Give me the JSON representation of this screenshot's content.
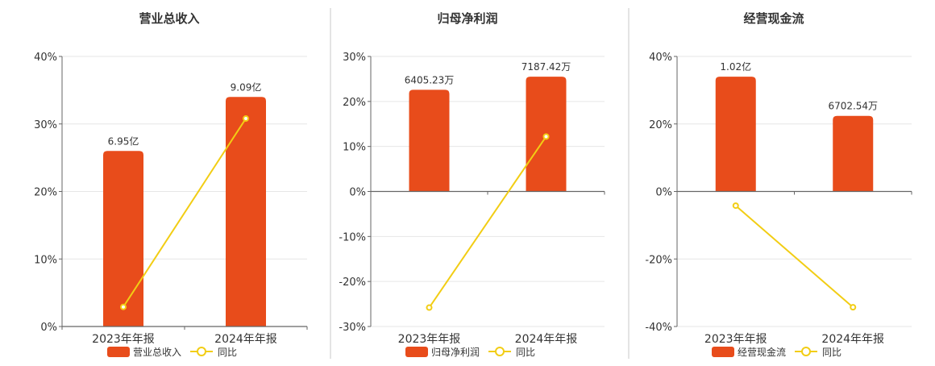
{
  "colors": {
    "bar": "#E84C1B",
    "line": "#F2CD14",
    "divider": "#C8C8C8",
    "grid": "#E6E6E6",
    "axis": "#666666",
    "text": "#333333"
  },
  "chart_data": [
    {
      "type": "bar+line",
      "title": "营业总收入",
      "categories": [
        "2023年年报",
        "2024年年报"
      ],
      "ylim": [
        0,
        40
      ],
      "yticks": [
        0,
        10,
        20,
        30,
        40
      ],
      "ytick_labels": [
        "0%",
        "10%",
        "20%",
        "30%",
        "40%"
      ],
      "series": [
        {
          "name": "营业总收入",
          "kind": "bar",
          "values": [
            26,
            34
          ],
          "labels": [
            "6.95亿",
            "9.09亿"
          ]
        },
        {
          "name": "同比",
          "kind": "line",
          "values": [
            2.9,
            30.8
          ]
        }
      ],
      "legend": [
        "营业总收入",
        "同比"
      ],
      "grid": true,
      "legend_position": "bottom"
    },
    {
      "type": "bar+line",
      "title": "归母净利润",
      "categories": [
        "2023年年报",
        "2024年年报"
      ],
      "ylim": [
        -30,
        30
      ],
      "yticks": [
        -30,
        -20,
        -10,
        0,
        10,
        20,
        30
      ],
      "ytick_labels": [
        "-30%",
        "-20%",
        "-10%",
        "0%",
        "10%",
        "20%",
        "30%"
      ],
      "series": [
        {
          "name": "归母净利润",
          "kind": "bar",
          "values": [
            22.6,
            25.5
          ],
          "labels": [
            "6405.23万",
            "7187.42万"
          ]
        },
        {
          "name": "同比",
          "kind": "line",
          "values": [
            -25.8,
            12.2
          ]
        }
      ],
      "legend": [
        "归母净利润",
        "同比"
      ],
      "grid": true,
      "legend_position": "bottom"
    },
    {
      "type": "bar+line",
      "title": "经营现金流",
      "categories": [
        "2023年年报",
        "2024年年报"
      ],
      "ylim": [
        -40,
        40
      ],
      "yticks": [
        -40,
        -20,
        0,
        20,
        40
      ],
      "ytick_labels": [
        "-40%",
        "-20%",
        "0%",
        "20%",
        "40%"
      ],
      "series": [
        {
          "name": "经营现金流",
          "kind": "bar",
          "values": [
            34,
            22.4
          ],
          "labels": [
            "1.02亿",
            "6702.54万"
          ]
        },
        {
          "name": "同比",
          "kind": "line",
          "values": [
            -4.2,
            -34.3
          ]
        }
      ],
      "legend": [
        "经营现金流",
        "同比"
      ],
      "grid": true,
      "legend_position": "bottom"
    }
  ]
}
